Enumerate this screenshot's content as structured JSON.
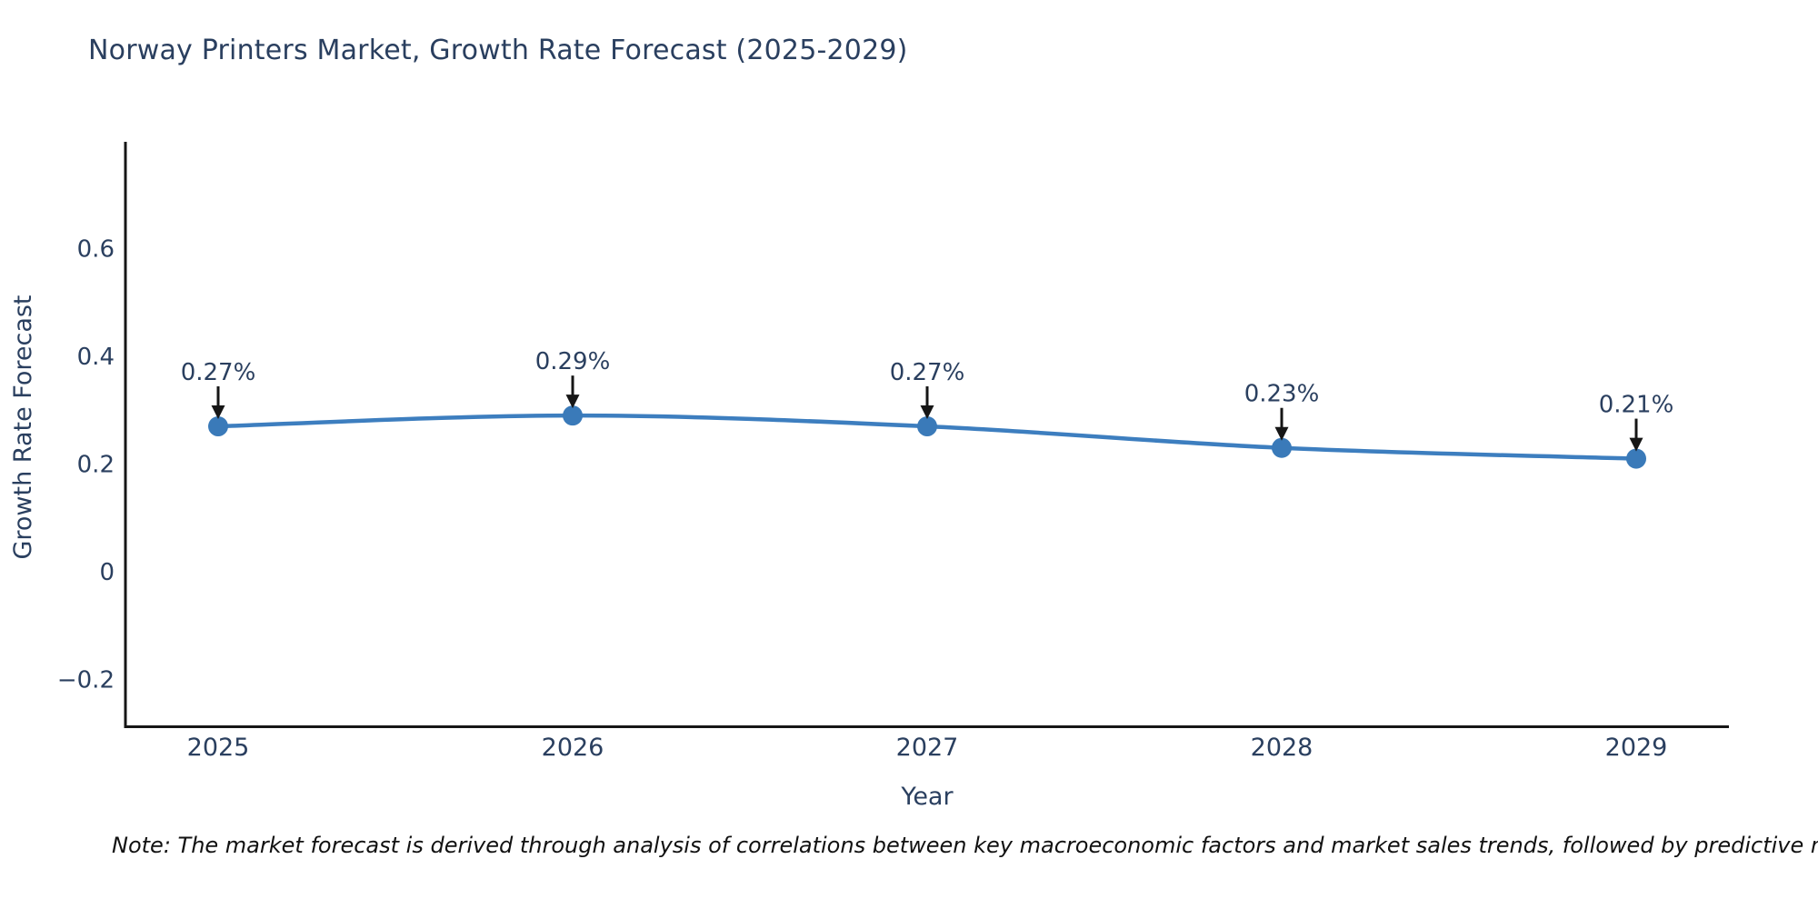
{
  "chart_data": {
    "type": "line",
    "title": "Norway Printers Market, Growth Rate Forecast (2025-2029)",
    "xlabel": "Year",
    "ylabel": "Growth Rate Forecast",
    "x": [
      "2025",
      "2026",
      "2027",
      "2028",
      "2029"
    ],
    "series": [
      {
        "name": "Growth Rate Forecast",
        "values": [
          0.27,
          0.29,
          0.27,
          0.23,
          0.21
        ]
      }
    ],
    "point_labels": [
      "0.27%",
      "0.29%",
      "0.27%",
      "0.23%",
      "0.21%"
    ],
    "yticks": [
      0.6,
      0.4,
      0.2,
      0,
      -0.2
    ],
    "ylim": [
      -0.29,
      0.79
    ],
    "grid": false,
    "legend": false,
    "colors": {
      "line": "#3d7ebf",
      "marker": "#3a7ab9",
      "axis": "#161616",
      "tick_text": "#2a3f5f",
      "annotation_text": "#2a3f5f",
      "arrow": "#161616",
      "title_text": "#2a3f5f"
    }
  },
  "note": {
    "text": "Note: The market forecast is derived through analysis of correlations between key macroeconomic factors and market sales trends, followed by predictive modeling to project future sales."
  }
}
